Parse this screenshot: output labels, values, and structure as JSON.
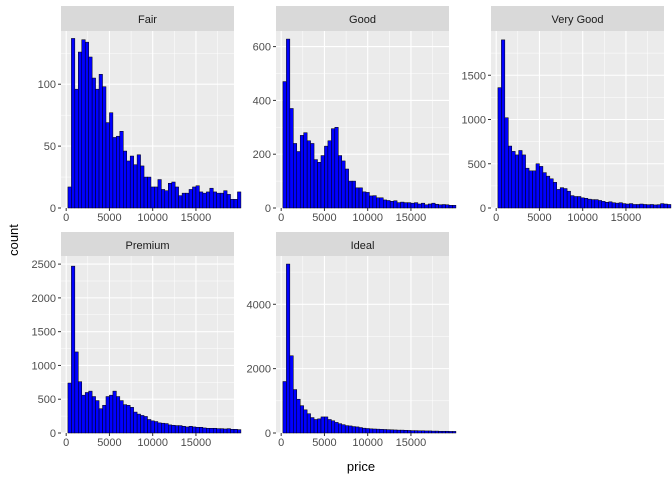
{
  "chart_data": {
    "type": "bar",
    "chart_kind": "faceted histogram",
    "xlabel": "price",
    "ylabel": "count",
    "x_ticks": [
      0,
      5000,
      10000,
      15000
    ],
    "x_range": [
      -600,
      19400
    ],
    "bin_width": 400,
    "bin_start": 200,
    "bar_fill": "#0000ff",
    "bar_outline": "#000000",
    "panel_background": "#ebebeb",
    "strip_background": "#d9d9d9",
    "gridline_color": "#ffffff",
    "grid": true,
    "scales": "free_y",
    "facets": [
      {
        "label": "Fair",
        "y_ticks": [
          0,
          50,
          100
        ],
        "y_max": 143,
        "counts": [
          17,
          137,
          96,
          126,
          136,
          134,
          122,
          105,
          96,
          108,
          98,
          69,
          77,
          57,
          58,
          62,
          46,
          38,
          42,
          35,
          43,
          34,
          25,
          25,
          17,
          17,
          23,
          15,
          14,
          20,
          21,
          17,
          10,
          12,
          12,
          15,
          17,
          18,
          13,
          12,
          13,
          16,
          13,
          12,
          12,
          14,
          11,
          7,
          7,
          13
        ]
      },
      {
        "label": "Good",
        "y_ticks": [
          0,
          200,
          400,
          600
        ],
        "y_max": 658,
        "counts": [
          470,
          628,
          370,
          240,
          210,
          270,
          280,
          250,
          240,
          180,
          170,
          195,
          230,
          250,
          295,
          300,
          195,
          175,
          145,
          100,
          100,
          75,
          75,
          60,
          58,
          45,
          46,
          38,
          38,
          30,
          28,
          25,
          27,
          20,
          22,
          20,
          20,
          18,
          20,
          15,
          18,
          12,
          15,
          18,
          14,
          12,
          13,
          12,
          10,
          10
        ]
      },
      {
        "label": "Very Good",
        "y_ticks": [
          0,
          500,
          1000,
          1500
        ],
        "y_max": 2000,
        "counts": [
          1360,
          1900,
          1020,
          700,
          640,
          600,
          650,
          600,
          450,
          420,
          420,
          500,
          470,
          400,
          360,
          330,
          290,
          210,
          230,
          220,
          190,
          140,
          130,
          130,
          115,
          110,
          100,
          95,
          95,
          85,
          75,
          65,
          70,
          60,
          55,
          60,
          50,
          45,
          50,
          40,
          40,
          45,
          40,
          38,
          40,
          35,
          38,
          50,
          45,
          40
        ]
      },
      {
        "label": "Premium",
        "y_ticks": [
          0,
          500,
          1000,
          1500,
          2000,
          2500
        ],
        "y_max": 2620,
        "counts": [
          740,
          2470,
          1200,
          760,
          560,
          600,
          620,
          540,
          480,
          360,
          410,
          540,
          560,
          620,
          540,
          480,
          420,
          410,
          380,
          310,
          280,
          260,
          245,
          200,
          180,
          170,
          150,
          145,
          140,
          120,
          115,
          110,
          110,
          100,
          90,
          100,
          90,
          85,
          85,
          75,
          70,
          70,
          70,
          65,
          65,
          60,
          65,
          55,
          55,
          50
        ]
      },
      {
        "label": "Ideal",
        "y_ticks": [
          0,
          2000,
          4000
        ],
        "y_max": 5500,
        "counts": [
          1600,
          5250,
          2400,
          1350,
          1050,
          850,
          720,
          600,
          480,
          420,
          440,
          500,
          500,
          420,
          380,
          330,
          290,
          260,
          230,
          220,
          200,
          190,
          170,
          150,
          140,
          130,
          125,
          120,
          115,
          110,
          105,
          100,
          95,
          90,
          90,
          85,
          80,
          75,
          75,
          70,
          70,
          65,
          65,
          60,
          60,
          55,
          55,
          55,
          50,
          50
        ]
      }
    ]
  }
}
